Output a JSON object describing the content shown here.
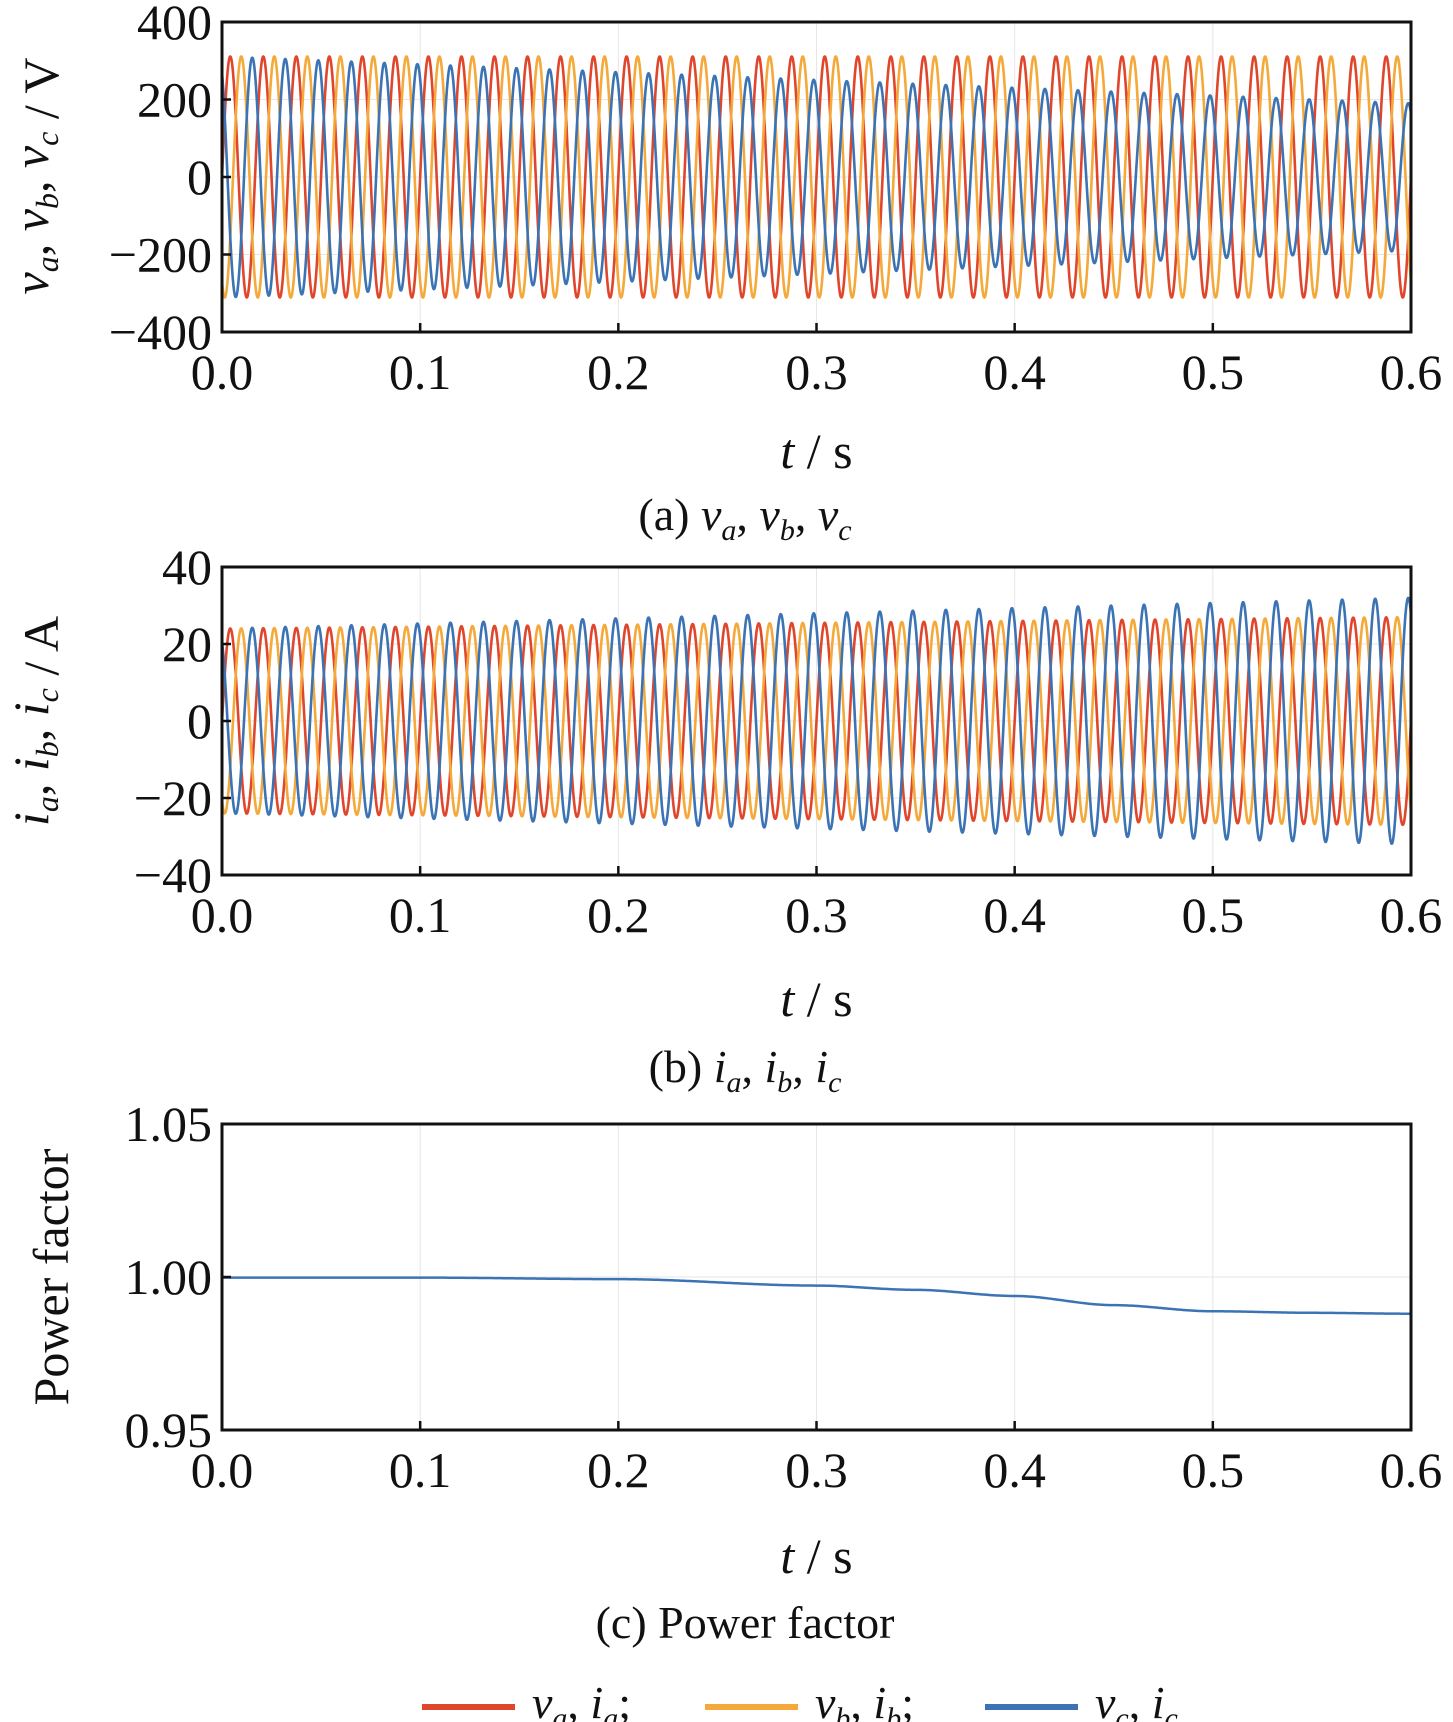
{
  "chart_data": [
    {
      "type": "line",
      "caption": "(a) v_a, v_b, v_c",
      "caption_prefix": "(a)",
      "xlabel": "t / s",
      "ylabel": "v_a, v_b, v_c / V",
      "xlim": [
        0.0,
        0.6
      ],
      "ylim": [
        -400,
        400
      ],
      "xticks": [
        "0.0",
        "0.1",
        "0.2",
        "0.3",
        "0.4",
        "0.5",
        "0.6"
      ],
      "yticks": [
        "400",
        "200",
        "0",
        "−200",
        "−400"
      ],
      "grid": true,
      "frequency_hz": 60,
      "series": [
        {
          "name": "v_a",
          "color": "#e0462b",
          "amplitude_start": 311,
          "amplitude_end": 311,
          "phase_deg": 0
        },
        {
          "name": "v_b",
          "color": "#f4a93a",
          "amplitude_start": 311,
          "amplitude_end": 311,
          "phase_deg": -120
        },
        {
          "name": "v_c",
          "color": "#3b73b4",
          "amplitude_start": 311,
          "amplitude_end": 190,
          "phase_deg": 120
        }
      ]
    },
    {
      "type": "line",
      "caption": "(b) i_a, i_b, i_c",
      "caption_prefix": "(b)",
      "xlabel": "t / s",
      "ylabel": "i_a, i_b, i_c / A",
      "xlim": [
        0.0,
        0.6
      ],
      "ylim": [
        -40,
        40
      ],
      "xticks": [
        "0.0",
        "0.1",
        "0.2",
        "0.3",
        "0.4",
        "0.5",
        "0.6"
      ],
      "yticks": [
        "40",
        "20",
        "0",
        "−20",
        "−40"
      ],
      "grid": true,
      "frequency_hz": 60,
      "series": [
        {
          "name": "i_a",
          "color": "#e0462b",
          "amplitude_start": 24,
          "amplitude_end": 27,
          "phase_deg": 0
        },
        {
          "name": "i_b",
          "color": "#f4a93a",
          "amplitude_start": 24,
          "amplitude_end": 27,
          "phase_deg": -120
        },
        {
          "name": "i_c",
          "color": "#3b73b4",
          "amplitude_start": 24,
          "amplitude_end": 32,
          "phase_deg": 120
        }
      ]
    },
    {
      "type": "line",
      "caption": "(c) Power factor",
      "xlabel": "t / s",
      "ylabel": "Power factor",
      "xlim": [
        0.0,
        0.6
      ],
      "ylim": [
        0.95,
        1.05
      ],
      "xticks": [
        "0.0",
        "0.1",
        "0.2",
        "0.3",
        "0.4",
        "0.5",
        "0.6"
      ],
      "yticks": [
        "1.05",
        "1.00",
        "0.95"
      ],
      "grid": true,
      "series": [
        {
          "name": "power factor",
          "color": "#3b73b4",
          "x": [
            0.0,
            0.1,
            0.2,
            0.3,
            0.35,
            0.4,
            0.45,
            0.5,
            0.55,
            0.6
          ],
          "y": [
            0.9998,
            0.9998,
            0.9993,
            0.9972,
            0.9958,
            0.9938,
            0.9908,
            0.9888,
            0.9883,
            0.988
          ]
        }
      ]
    }
  ],
  "legend": [
    {
      "label": "v_a, i_a;",
      "color": "#e0462b"
    },
    {
      "label": "v_b, i_b;",
      "color": "#f4a93a"
    },
    {
      "label": "v_c, i_c",
      "color": "#3b73b4"
    }
  ]
}
